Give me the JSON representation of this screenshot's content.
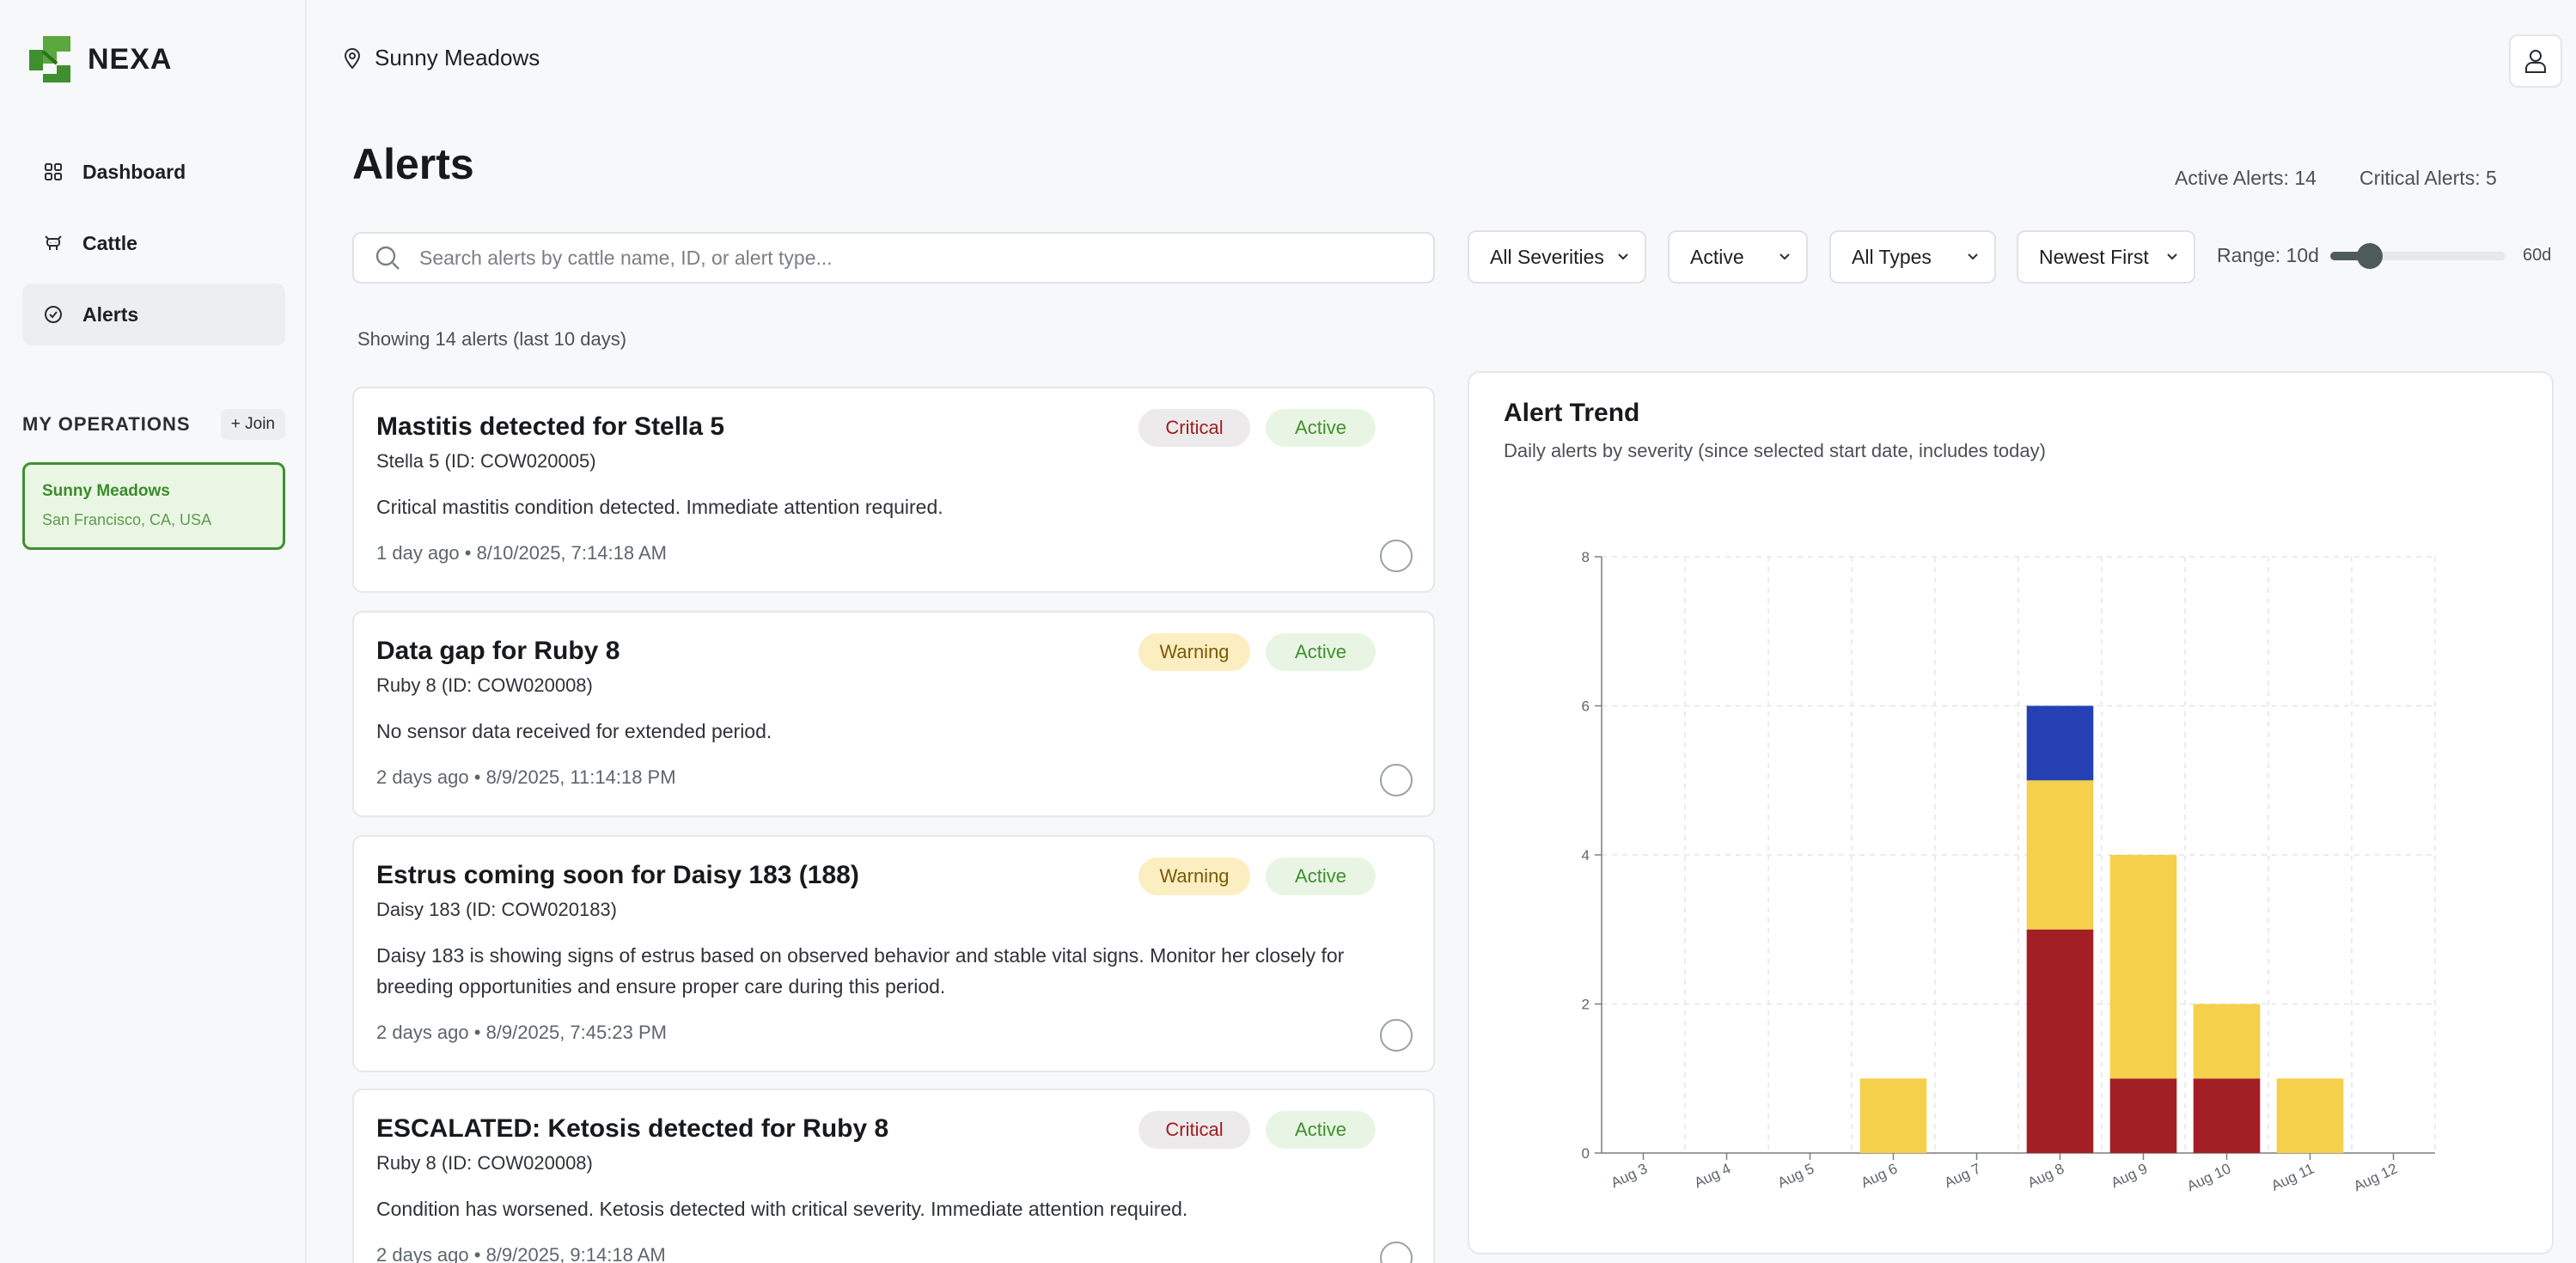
{
  "brand": {
    "name": "NEXA"
  },
  "sidebar": {
    "items": [
      {
        "label": "Dashboard",
        "icon": "grid-icon"
      },
      {
        "label": "Cattle",
        "icon": "cow-icon"
      },
      {
        "label": "Alerts",
        "icon": "check-circle-icon",
        "active": true
      }
    ],
    "operations_title": "MY OPERATIONS",
    "join_label": "+ Join",
    "operation": {
      "name": "Sunny Meadows",
      "location": "San Francisco, CA, USA"
    }
  },
  "topbar": {
    "location": "Sunny Meadows"
  },
  "header": {
    "title": "Alerts",
    "active_alerts": "Active Alerts: 14",
    "critical_alerts": "Critical Alerts: 5"
  },
  "filters": {
    "search_placeholder": "Search alerts by cattle name, ID, or alert type...",
    "severity": "All Severities",
    "status": "Active",
    "type": "All Types",
    "sort": "Newest First",
    "range_label": "Range: 10d",
    "range_max": "60d",
    "range_value": 10,
    "range_min_value": 1,
    "range_max_value": 60
  },
  "showing": "Showing 14 alerts (last 10 days)",
  "alerts": [
    {
      "title": "Mastitis detected for Stella 5",
      "subtitle": "Stella 5 (ID: COW020005)",
      "description": "Critical mastitis condition detected. Immediate attention required.",
      "time": "1 day ago • 8/10/2025, 7:14:18 AM",
      "severity": "Critical",
      "status": "Active"
    },
    {
      "title": "Data gap for Ruby 8",
      "subtitle": "Ruby 8 (ID: COW020008)",
      "description": "No sensor data received for extended period.",
      "time": "2 days ago • 8/9/2025, 11:14:18 PM",
      "severity": "Warning",
      "status": "Active"
    },
    {
      "title": "Estrus coming soon for Daisy 183 (188)",
      "subtitle": "Daisy 183 (ID: COW020183)",
      "description": "Daisy 183 is showing signs of estrus based on observed behavior and stable vital signs. Monitor her closely for breeding opportunities and ensure proper care during this period.",
      "time": "2 days ago • 8/9/2025, 7:45:23 PM",
      "severity": "Warning",
      "status": "Active"
    },
    {
      "title": "ESCALATED: Ketosis detected for Ruby 8",
      "subtitle": "Ruby 8 (ID: COW020008)",
      "description": "Condition has worsened. Ketosis detected with critical severity. Immediate attention required.",
      "time": "2 days ago • 8/9/2025, 9:14:18 AM",
      "severity": "Critical",
      "status": "Active"
    }
  ],
  "colors": {
    "critical": "#a31f26",
    "warning": "#f5d04a",
    "info": "#2440b3",
    "brand": "#3f8f2e"
  },
  "chart_data": {
    "type": "bar",
    "stacked": true,
    "title": "Alert Trend",
    "subtitle": "Daily alerts by severity (since selected start date, includes today)",
    "categories": [
      "Aug 3",
      "Aug 4",
      "Aug 5",
      "Aug 6",
      "Aug 7",
      "Aug 8",
      "Aug 9",
      "Aug 10",
      "Aug 11",
      "Aug 12"
    ],
    "series": [
      {
        "key": "critical",
        "values": [
          0,
          0,
          0,
          0,
          0,
          3,
          1,
          1,
          0,
          0
        ]
      },
      {
        "key": "warning",
        "values": [
          0,
          0,
          0,
          1,
          0,
          2,
          3,
          1,
          1,
          0
        ]
      },
      {
        "key": "info",
        "values": [
          0,
          0,
          0,
          0,
          0,
          1,
          0,
          0,
          0,
          0
        ]
      }
    ],
    "yticks": [
      0,
      2,
      4,
      6,
      8
    ],
    "ylim": [
      0,
      8
    ],
    "grid": true
  }
}
